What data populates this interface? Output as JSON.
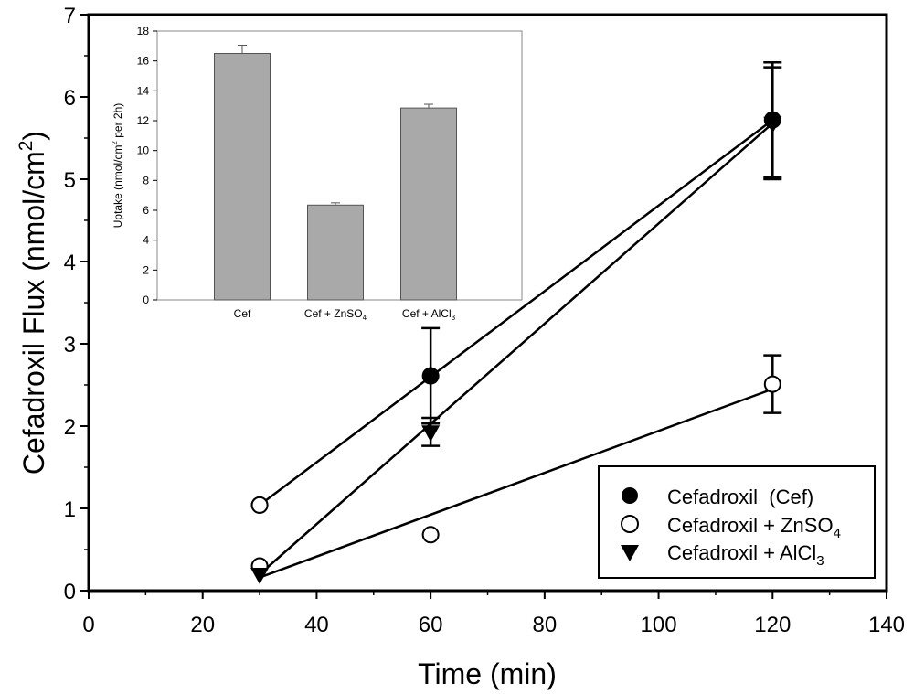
{
  "chart_data": [
    {
      "type": "scatter",
      "title": "",
      "xlabel": "Time (min)",
      "ylabel": "Cefadroxil Flux (nmol/cm",
      "ylabel_sup": "2",
      "ylabel_end": ")",
      "xlim": [
        0,
        140
      ],
      "ylim": [
        0,
        7
      ],
      "xticks": [
        0,
        20,
        40,
        60,
        80,
        100,
        120,
        140
      ],
      "yticks": [
        0,
        1,
        2,
        3,
        4,
        5,
        6,
        7
      ],
      "grid": false,
      "legend_position": "bottom-right",
      "series": [
        {
          "name": "Cefadroxil  (Cef)",
          "marker": "filled-circle",
          "x": [
            30,
            60,
            120
          ],
          "y": [
            1.04,
            2.61,
            5.72
          ],
          "error": [
            0,
            0.58,
            0.7
          ],
          "fit": [
            [
              30,
              1.04
            ],
            [
              120,
              5.72
            ]
          ]
        },
        {
          "name": "Cefadroxil + ZnSO",
          "name_sub": "4",
          "marker": "open-circle",
          "x": [
            30,
            30,
            60,
            120
          ],
          "y": [
            1.04,
            0.3,
            0.68,
            2.51
          ],
          "error": [
            0,
            0,
            0,
            0.35
          ],
          "fit": [
            [
              30,
              0.16
            ],
            [
              120,
              2.45
            ]
          ]
        },
        {
          "name": "Cefadroxil + AlCl",
          "name_sub": "3",
          "marker": "filled-triangle-down",
          "x": [
            30,
            60,
            120
          ],
          "y": [
            0.2,
            1.93,
            5.68
          ],
          "error": [
            0,
            0.17,
            0.68
          ],
          "fit": [
            [
              30,
              0.2
            ],
            [
              120,
              5.68
            ]
          ]
        }
      ]
    },
    {
      "type": "bar",
      "title": "",
      "xlabel": "",
      "ylabel": "Uptake (nmol/cm",
      "ylabel_sup": "2",
      "ylabel_end": " per 2h)",
      "ylim": [
        0,
        18
      ],
      "yticks": [
        0,
        2,
        4,
        6,
        8,
        10,
        12,
        14,
        16,
        18
      ],
      "categories": [
        {
          "label": "Cef",
          "sub": ""
        },
        {
          "label": "Cef + ZnSO",
          "sub": "4"
        },
        {
          "label": "Cef + AlCl",
          "sub": "3"
        }
      ],
      "values": [
        16.5,
        6.35,
        12.85
      ],
      "errors": [
        0.55,
        0.15,
        0.25
      ],
      "bar_color": "#a9a9a9"
    }
  ]
}
